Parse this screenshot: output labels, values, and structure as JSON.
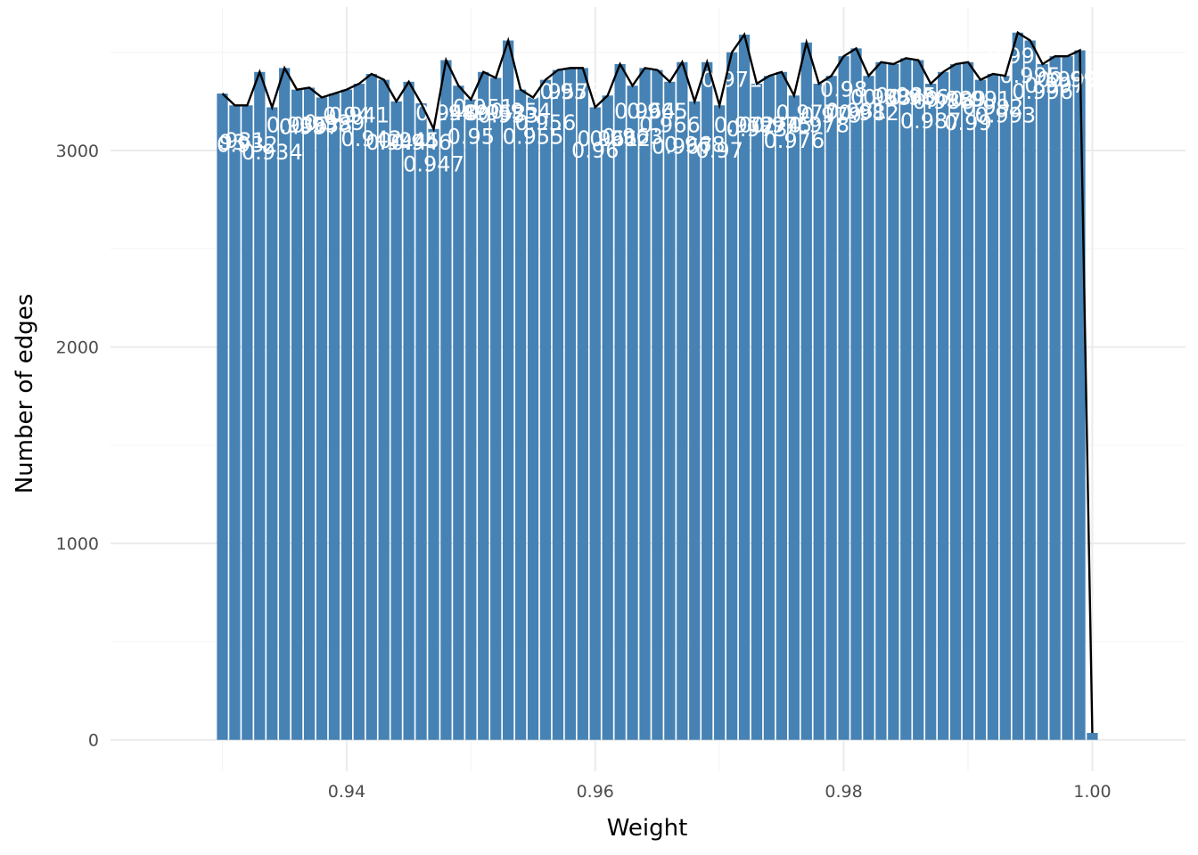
{
  "chart_data": {
    "type": "bar",
    "xlabel": "Weight",
    "ylabel": "Number of edges",
    "xlim": [
      0.921,
      1.0075
    ],
    "ylim": [
      -160,
      3730
    ],
    "x_ticks": [
      0.94,
      0.96,
      0.98,
      1.0
    ],
    "x_tick_labels": [
      "0.94",
      "0.96",
      "0.98",
      "1.00"
    ],
    "y_ticks": [
      0,
      1000,
      2000,
      3000
    ],
    "y_tick_labels": [
      "0",
      "1000",
      "2000",
      "3000"
    ],
    "grid": true,
    "bar_color": "#4682b4",
    "line_color": "#000000",
    "bar_width": 0.00088,
    "x": [
      0.93,
      0.931,
      0.932,
      0.933,
      0.934,
      0.935,
      0.936,
      0.937,
      0.938,
      0.939,
      0.94,
      0.941,
      0.942,
      0.943,
      0.944,
      0.945,
      0.946,
      0.947,
      0.948,
      0.949,
      0.95,
      0.951,
      0.952,
      0.953,
      0.954,
      0.955,
      0.956,
      0.957,
      0.958,
      0.959,
      0.96,
      0.961,
      0.962,
      0.963,
      0.964,
      0.965,
      0.966,
      0.967,
      0.968,
      0.969,
      0.97,
      0.971,
      0.972,
      0.973,
      0.974,
      0.975,
      0.976,
      0.977,
      0.978,
      0.979,
      0.98,
      0.981,
      0.982,
      0.983,
      0.984,
      0.985,
      0.986,
      0.987,
      0.988,
      0.989,
      0.99,
      0.991,
      0.992,
      0.993,
      0.994,
      0.995,
      0.996,
      0.997,
      0.998,
      0.999,
      1.0
    ],
    "values": [
      3290,
      3230,
      3230,
      3400,
      3220,
      3420,
      3310,
      3320,
      3270,
      3290,
      3310,
      3340,
      3390,
      3360,
      3250,
      3350,
      3240,
      3110,
      3460,
      3330,
      3260,
      3400,
      3370,
      3560,
      3310,
      3270,
      3360,
      3410,
      3420,
      3420,
      3220,
      3280,
      3440,
      3330,
      3420,
      3410,
      3350,
      3450,
      3250,
      3450,
      3230,
      3500,
      3590,
      3340,
      3380,
      3400,
      3280,
      3550,
      3340,
      3380,
      3480,
      3520,
      3380,
      3450,
      3440,
      3470,
      3460,
      3340,
      3400,
      3440,
      3450,
      3360,
      3390,
      3380,
      3600,
      3560,
      3440,
      3480,
      3480,
      3510,
      35
    ],
    "labels": [
      {
        "x": 0.93,
        "y": 3040,
        "text": "0.93"
      },
      {
        "x": 0.931,
        "y": 3050,
        "text": "0.931"
      },
      {
        "x": 0.932,
        "y": 3030,
        "text": "0.932"
      },
      {
        "x": 0.934,
        "y": 2990,
        "text": "0.934"
      },
      {
        "x": 0.936,
        "y": 3130,
        "text": "0.936"
      },
      {
        "x": 0.937,
        "y": 3120,
        "text": "0.937"
      },
      {
        "x": 0.938,
        "y": 3130,
        "text": "0.938"
      },
      {
        "x": 0.939,
        "y": 3140,
        "text": "0.939"
      },
      {
        "x": 0.94,
        "y": 3180,
        "text": "0.94"
      },
      {
        "x": 0.941,
        "y": 3180,
        "text": "0.941"
      },
      {
        "x": 0.942,
        "y": 3060,
        "text": "0.942"
      },
      {
        "x": 0.944,
        "y": 3040,
        "text": "0.944"
      },
      {
        "x": 0.945,
        "y": 3050,
        "text": "0.945"
      },
      {
        "x": 0.946,
        "y": 3040,
        "text": "0.946"
      },
      {
        "x": 0.947,
        "y": 2930,
        "text": "0.947"
      },
      {
        "x": 0.948,
        "y": 3190,
        "text": "0.948"
      },
      {
        "x": 0.949,
        "y": 3190,
        "text": "0.949"
      },
      {
        "x": 0.95,
        "y": 3070,
        "text": "0.95"
      },
      {
        "x": 0.951,
        "y": 3220,
        "text": "0.951"
      },
      {
        "x": 0.952,
        "y": 3190,
        "text": "0.952"
      },
      {
        "x": 0.953,
        "y": 3180,
        "text": "0.953"
      },
      {
        "x": 0.954,
        "y": 3200,
        "text": "0.954"
      },
      {
        "x": 0.955,
        "y": 3070,
        "text": "0.955"
      },
      {
        "x": 0.956,
        "y": 3140,
        "text": "0.956"
      },
      {
        "x": 0.957,
        "y": 3300,
        "text": "0.957"
      },
      {
        "x": 0.958,
        "y": 3300,
        "text": "0.958"
      },
      {
        "x": 0.96,
        "y": 3000,
        "text": "0.96"
      },
      {
        "x": 0.961,
        "y": 3060,
        "text": "0.961"
      },
      {
        "x": 0.962,
        "y": 3060,
        "text": "0.962"
      },
      {
        "x": 0.963,
        "y": 3070,
        "text": "0.963"
      },
      {
        "x": 0.964,
        "y": 3200,
        "text": "0.964"
      },
      {
        "x": 0.965,
        "y": 3200,
        "text": "0.965"
      },
      {
        "x": 0.966,
        "y": 3130,
        "text": "0.966"
      },
      {
        "x": 0.967,
        "y": 3020,
        "text": "0.967"
      },
      {
        "x": 0.968,
        "y": 3030,
        "text": "0.968"
      },
      {
        "x": 0.97,
        "y": 3000,
        "text": "0.97"
      },
      {
        "x": 0.971,
        "y": 3360,
        "text": "0.971"
      },
      {
        "x": 0.972,
        "y": 3130,
        "text": "0.972"
      },
      {
        "x": 0.973,
        "y": 3110,
        "text": "0.973"
      },
      {
        "x": 0.974,
        "y": 3130,
        "text": "0.974"
      },
      {
        "x": 0.975,
        "y": 3130,
        "text": "0.975"
      },
      {
        "x": 0.976,
        "y": 3050,
        "text": "0.976"
      },
      {
        "x": 0.977,
        "y": 3190,
        "text": "0.977"
      },
      {
        "x": 0.978,
        "y": 3130,
        "text": "0.978"
      },
      {
        "x": 0.979,
        "y": 3180,
        "text": "0.979"
      },
      {
        "x": 0.98,
        "y": 3310,
        "text": "0.98"
      },
      {
        "x": 0.981,
        "y": 3200,
        "text": "0.981"
      },
      {
        "x": 0.982,
        "y": 3190,
        "text": "0.982"
      },
      {
        "x": 0.983,
        "y": 3270,
        "text": "0.983"
      },
      {
        "x": 0.984,
        "y": 3270,
        "text": "0.984"
      },
      {
        "x": 0.985,
        "y": 3280,
        "text": "0.985"
      },
      {
        "x": 0.986,
        "y": 3270,
        "text": "0.986"
      },
      {
        "x": 0.987,
        "y": 3150,
        "text": "0.987"
      },
      {
        "x": 0.988,
        "y": 3250,
        "text": "0.988"
      },
      {
        "x": 0.989,
        "y": 3260,
        "text": "0.989"
      },
      {
        "x": 0.99,
        "y": 3140,
        "text": "0.99"
      },
      {
        "x": 0.991,
        "y": 3260,
        "text": "0.991"
      },
      {
        "x": 0.992,
        "y": 3220,
        "text": "0.992"
      },
      {
        "x": 0.993,
        "y": 3180,
        "text": "0.993"
      },
      {
        "x": 0.994,
        "y": 3480,
        "text": "0.994"
      },
      {
        "x": 0.995,
        "y": 3380,
        "text": "0.995"
      },
      {
        "x": 0.996,
        "y": 3300,
        "text": "0.996"
      },
      {
        "x": 0.997,
        "y": 3330,
        "text": "0.997"
      },
      {
        "x": 0.998,
        "y": 3360,
        "text": "0.998"
      },
      {
        "x": 0.999,
        "y": 3360,
        "text": "0.999"
      }
    ]
  }
}
